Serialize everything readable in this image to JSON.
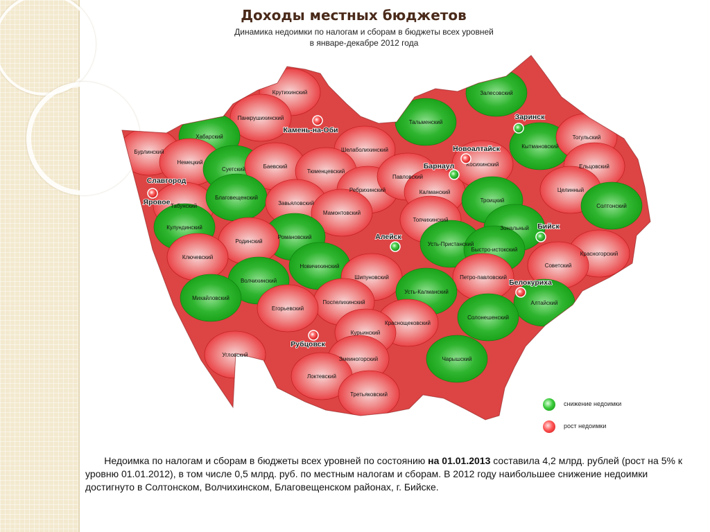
{
  "title": "Доходы местных бюджетов",
  "subtitle_line1": "Динамика недоимки по налогам и сборам в бюджеты всех уровней",
  "subtitle_line2": "в январе-декабре 2012 года",
  "colors": {
    "decrease": "#1ea61e",
    "increase": "#e8262b",
    "title": "#4a2a1a"
  },
  "map": {
    "districts": [
      {
        "name": "Крутихинский",
        "status": "increase"
      },
      {
        "name": "Панкрушихинский",
        "status": "increase"
      },
      {
        "name": "Хабарский",
        "status": "decrease"
      },
      {
        "name": "Бурлинский",
        "status": "increase"
      },
      {
        "name": "Немецкий",
        "status": "increase"
      },
      {
        "name": "Табунский",
        "status": "increase"
      },
      {
        "name": "Суетский",
        "status": "decrease"
      },
      {
        "name": "Баевский",
        "status": "increase"
      },
      {
        "name": "Шелаболихинский",
        "status": "increase"
      },
      {
        "name": "Тюменцевский",
        "status": "increase"
      },
      {
        "name": "Ребрихинский",
        "status": "increase"
      },
      {
        "name": "Павловский",
        "status": "increase"
      },
      {
        "name": "Калманский",
        "status": "increase"
      },
      {
        "name": "Тальменский",
        "status": "decrease"
      },
      {
        "name": "Залесовский",
        "status": "decrease"
      },
      {
        "name": "Кытмановский",
        "status": "decrease"
      },
      {
        "name": "Тогульский",
        "status": "increase"
      },
      {
        "name": "Косихинский",
        "status": "increase"
      },
      {
        "name": "Ельцовский",
        "status": "increase"
      },
      {
        "name": "Целинный",
        "status": "increase"
      },
      {
        "name": "Троицкий",
        "status": "decrease"
      },
      {
        "name": "Солтонский",
        "status": "decrease"
      },
      {
        "name": "Благовещенский",
        "status": "decrease"
      },
      {
        "name": "Кулундинский",
        "status": "decrease"
      },
      {
        "name": "Завьяловский",
        "status": "increase"
      },
      {
        "name": "Мамонтовский",
        "status": "increase"
      },
      {
        "name": "Топчихинский",
        "status": "increase"
      },
      {
        "name": "Романовский",
        "status": "decrease"
      },
      {
        "name": "Родинский",
        "status": "increase"
      },
      {
        "name": "Ключевский",
        "status": "increase"
      },
      {
        "name": "Зональный",
        "status": "decrease"
      },
      {
        "name": "Усть-Пристанский",
        "status": "decrease"
      },
      {
        "name": "Быстро-истокский",
        "status": "decrease"
      },
      {
        "name": "Красногорский",
        "status": "increase"
      },
      {
        "name": "Советский",
        "status": "increase"
      },
      {
        "name": "Новичихинский",
        "status": "decrease"
      },
      {
        "name": "Волчихинский",
        "status": "decrease"
      },
      {
        "name": "Михайловский",
        "status": "decrease"
      },
      {
        "name": "Шипуновский",
        "status": "increase"
      },
      {
        "name": "Петро-павловский",
        "status": "increase"
      },
      {
        "name": "Алтайский",
        "status": "decrease"
      },
      {
        "name": "Усть-Калманский",
        "status": "decrease"
      },
      {
        "name": "Поспелихинский",
        "status": "increase"
      },
      {
        "name": "Егорьевский",
        "status": "increase"
      },
      {
        "name": "Солонешенский",
        "status": "decrease"
      },
      {
        "name": "Краснощековский",
        "status": "increase"
      },
      {
        "name": "Курьинский",
        "status": "increase"
      },
      {
        "name": "Угловский",
        "status": "increase"
      },
      {
        "name": "Змеиногорский",
        "status": "increase"
      },
      {
        "name": "Чарышский",
        "status": "decrease"
      },
      {
        "name": "Локтевский",
        "status": "increase"
      },
      {
        "name": "Третьяковский",
        "status": "increase"
      }
    ],
    "cities": [
      {
        "name": "Камень-на-Оби",
        "status": "increase"
      },
      {
        "name": "Заринск",
        "status": "decrease"
      },
      {
        "name": "Новоалтайск",
        "status": "increase"
      },
      {
        "name": "Барнаул",
        "status": "decrease"
      },
      {
        "name": "Славгород",
        "status": "increase"
      },
      {
        "name": "Яровое",
        "status": "increase"
      },
      {
        "name": "Алейск",
        "status": "decrease"
      },
      {
        "name": "Бийск",
        "status": "decrease"
      },
      {
        "name": "Белокуриха",
        "status": "increase"
      },
      {
        "name": "Рубцовск",
        "status": "increase"
      }
    ]
  },
  "legend": {
    "decrease_label": "снижение недоимки",
    "increase_label": "рост недоимки"
  },
  "note": {
    "part1": "Недоимка по налогам и сборам в бюджеты всех уровней по состоянию ",
    "part2": "на 01.01.2013",
    "part3": " составила 4,2 млрд. рублей (рост на 5% к уровню 01.01.2012), в том числе 0,5 млрд. руб. по местным налогам и сборам. В 2012 году наибольшее снижение недоимки достигнуто в Солтонском, Волчихинском, Благовещенском районах, г. Бийске."
  }
}
